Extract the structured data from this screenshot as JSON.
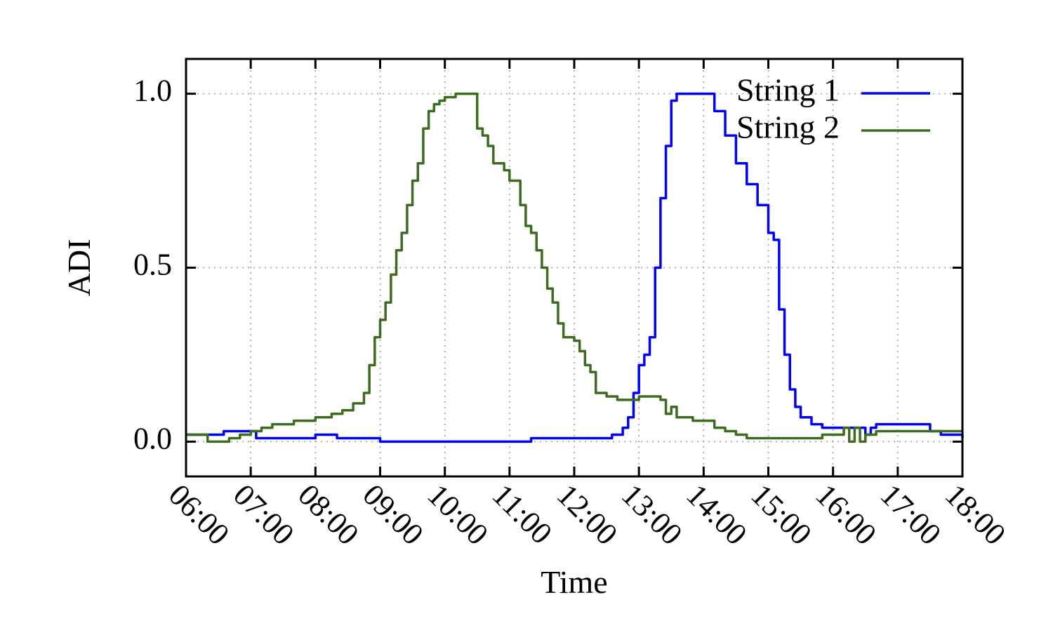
{
  "chart_data": {
    "type": "line",
    "xlabel": "Time",
    "ylabel": "ADI",
    "x_ticks": [
      "06:00",
      "07:00",
      "08:00",
      "09:00",
      "10:00",
      "11:00",
      "12:00",
      "13:00",
      "14:00",
      "15:00",
      "16:00",
      "17:00",
      "18:00"
    ],
    "y_ticks": [
      "0.0",
      "0.5",
      "1.0"
    ],
    "xlim": [
      "06:00",
      "18:00"
    ],
    "ylim": [
      -0.1,
      1.1
    ],
    "grid": true,
    "legend_position": "top-right",
    "series": [
      {
        "name": "String 1",
        "color": "#0000ff",
        "x": [
          "06:00",
          "06:30",
          "06:35",
          "07:00",
          "07:05",
          "07:55",
          "08:00",
          "08:05",
          "08:20",
          "09:00",
          "10:00",
          "11:00",
          "11:20",
          "12:00",
          "12:20",
          "12:35",
          "12:45",
          "12:50",
          "12:55",
          "13:00",
          "13:05",
          "13:10",
          "13:15",
          "13:20",
          "13:25",
          "13:30",
          "13:35",
          "13:40",
          "13:45",
          "14:00",
          "14:10",
          "14:20",
          "14:30",
          "14:40",
          "14:50",
          "15:00",
          "15:05",
          "15:10",
          "15:15",
          "15:20",
          "15:25",
          "15:30",
          "15:40",
          "15:50",
          "16:00",
          "16:15",
          "16:30",
          "16:35",
          "16:40",
          "17:00",
          "17:20",
          "17:30",
          "17:40",
          "18:00"
        ],
        "values": [
          0.02,
          0.02,
          0.03,
          0.03,
          0.01,
          0.01,
          0.02,
          0.02,
          0.01,
          0.0,
          0.0,
          0.0,
          0.01,
          0.01,
          0.01,
          0.02,
          0.04,
          0.07,
          0.14,
          0.22,
          0.25,
          0.3,
          0.5,
          0.7,
          0.85,
          0.98,
          1.0,
          1.0,
          1.0,
          1.0,
          0.95,
          0.88,
          0.8,
          0.74,
          0.68,
          0.6,
          0.58,
          0.38,
          0.25,
          0.15,
          0.1,
          0.07,
          0.05,
          0.04,
          0.04,
          0.04,
          0.02,
          0.04,
          0.05,
          0.05,
          0.05,
          0.03,
          0.02,
          0.01
        ]
      },
      {
        "name": "String 2",
        "color": "#3d6b1f",
        "x": [
          "06:00",
          "06:15",
          "06:20",
          "06:40",
          "06:50",
          "07:00",
          "07:10",
          "07:20",
          "07:40",
          "08:00",
          "08:15",
          "08:25",
          "08:35",
          "08:45",
          "08:50",
          "08:55",
          "09:00",
          "09:05",
          "09:10",
          "09:15",
          "09:20",
          "09:25",
          "09:30",
          "09:35",
          "09:40",
          "09:45",
          "09:50",
          "09:55",
          "10:00",
          "10:10",
          "10:20",
          "10:30",
          "10:35",
          "10:40",
          "10:45",
          "10:50",
          "10:55",
          "11:00",
          "11:10",
          "11:15",
          "11:20",
          "11:25",
          "11:30",
          "11:35",
          "11:40",
          "11:45",
          "11:50",
          "11:55",
          "12:00",
          "12:05",
          "12:10",
          "12:15",
          "12:20",
          "12:30",
          "12:40",
          "13:00",
          "13:10",
          "13:20",
          "13:25",
          "13:30",
          "13:35",
          "13:40",
          "13:50",
          "14:00",
          "14:10",
          "14:20",
          "14:30",
          "14:40",
          "15:00",
          "15:30",
          "15:50",
          "16:00",
          "16:10",
          "16:15",
          "16:20",
          "16:25",
          "16:30",
          "16:40",
          "17:00",
          "17:30",
          "18:00"
        ],
        "values": [
          0.02,
          0.02,
          0.0,
          0.01,
          0.02,
          0.03,
          0.04,
          0.05,
          0.06,
          0.07,
          0.08,
          0.09,
          0.11,
          0.14,
          0.22,
          0.3,
          0.35,
          0.4,
          0.48,
          0.55,
          0.6,
          0.68,
          0.75,
          0.8,
          0.9,
          0.95,
          0.97,
          0.98,
          0.99,
          1.0,
          1.0,
          0.9,
          0.88,
          0.85,
          0.8,
          0.8,
          0.78,
          0.75,
          0.68,
          0.62,
          0.6,
          0.55,
          0.5,
          0.44,
          0.4,
          0.34,
          0.3,
          0.3,
          0.29,
          0.26,
          0.22,
          0.2,
          0.14,
          0.13,
          0.12,
          0.13,
          0.13,
          0.12,
          0.08,
          0.1,
          0.07,
          0.07,
          0.06,
          0.06,
          0.04,
          0.03,
          0.02,
          0.01,
          0.01,
          0.01,
          0.02,
          0.02,
          0.04,
          0.0,
          0.04,
          0.0,
          0.02,
          0.03,
          0.03,
          0.03,
          0.03
        ]
      }
    ]
  }
}
